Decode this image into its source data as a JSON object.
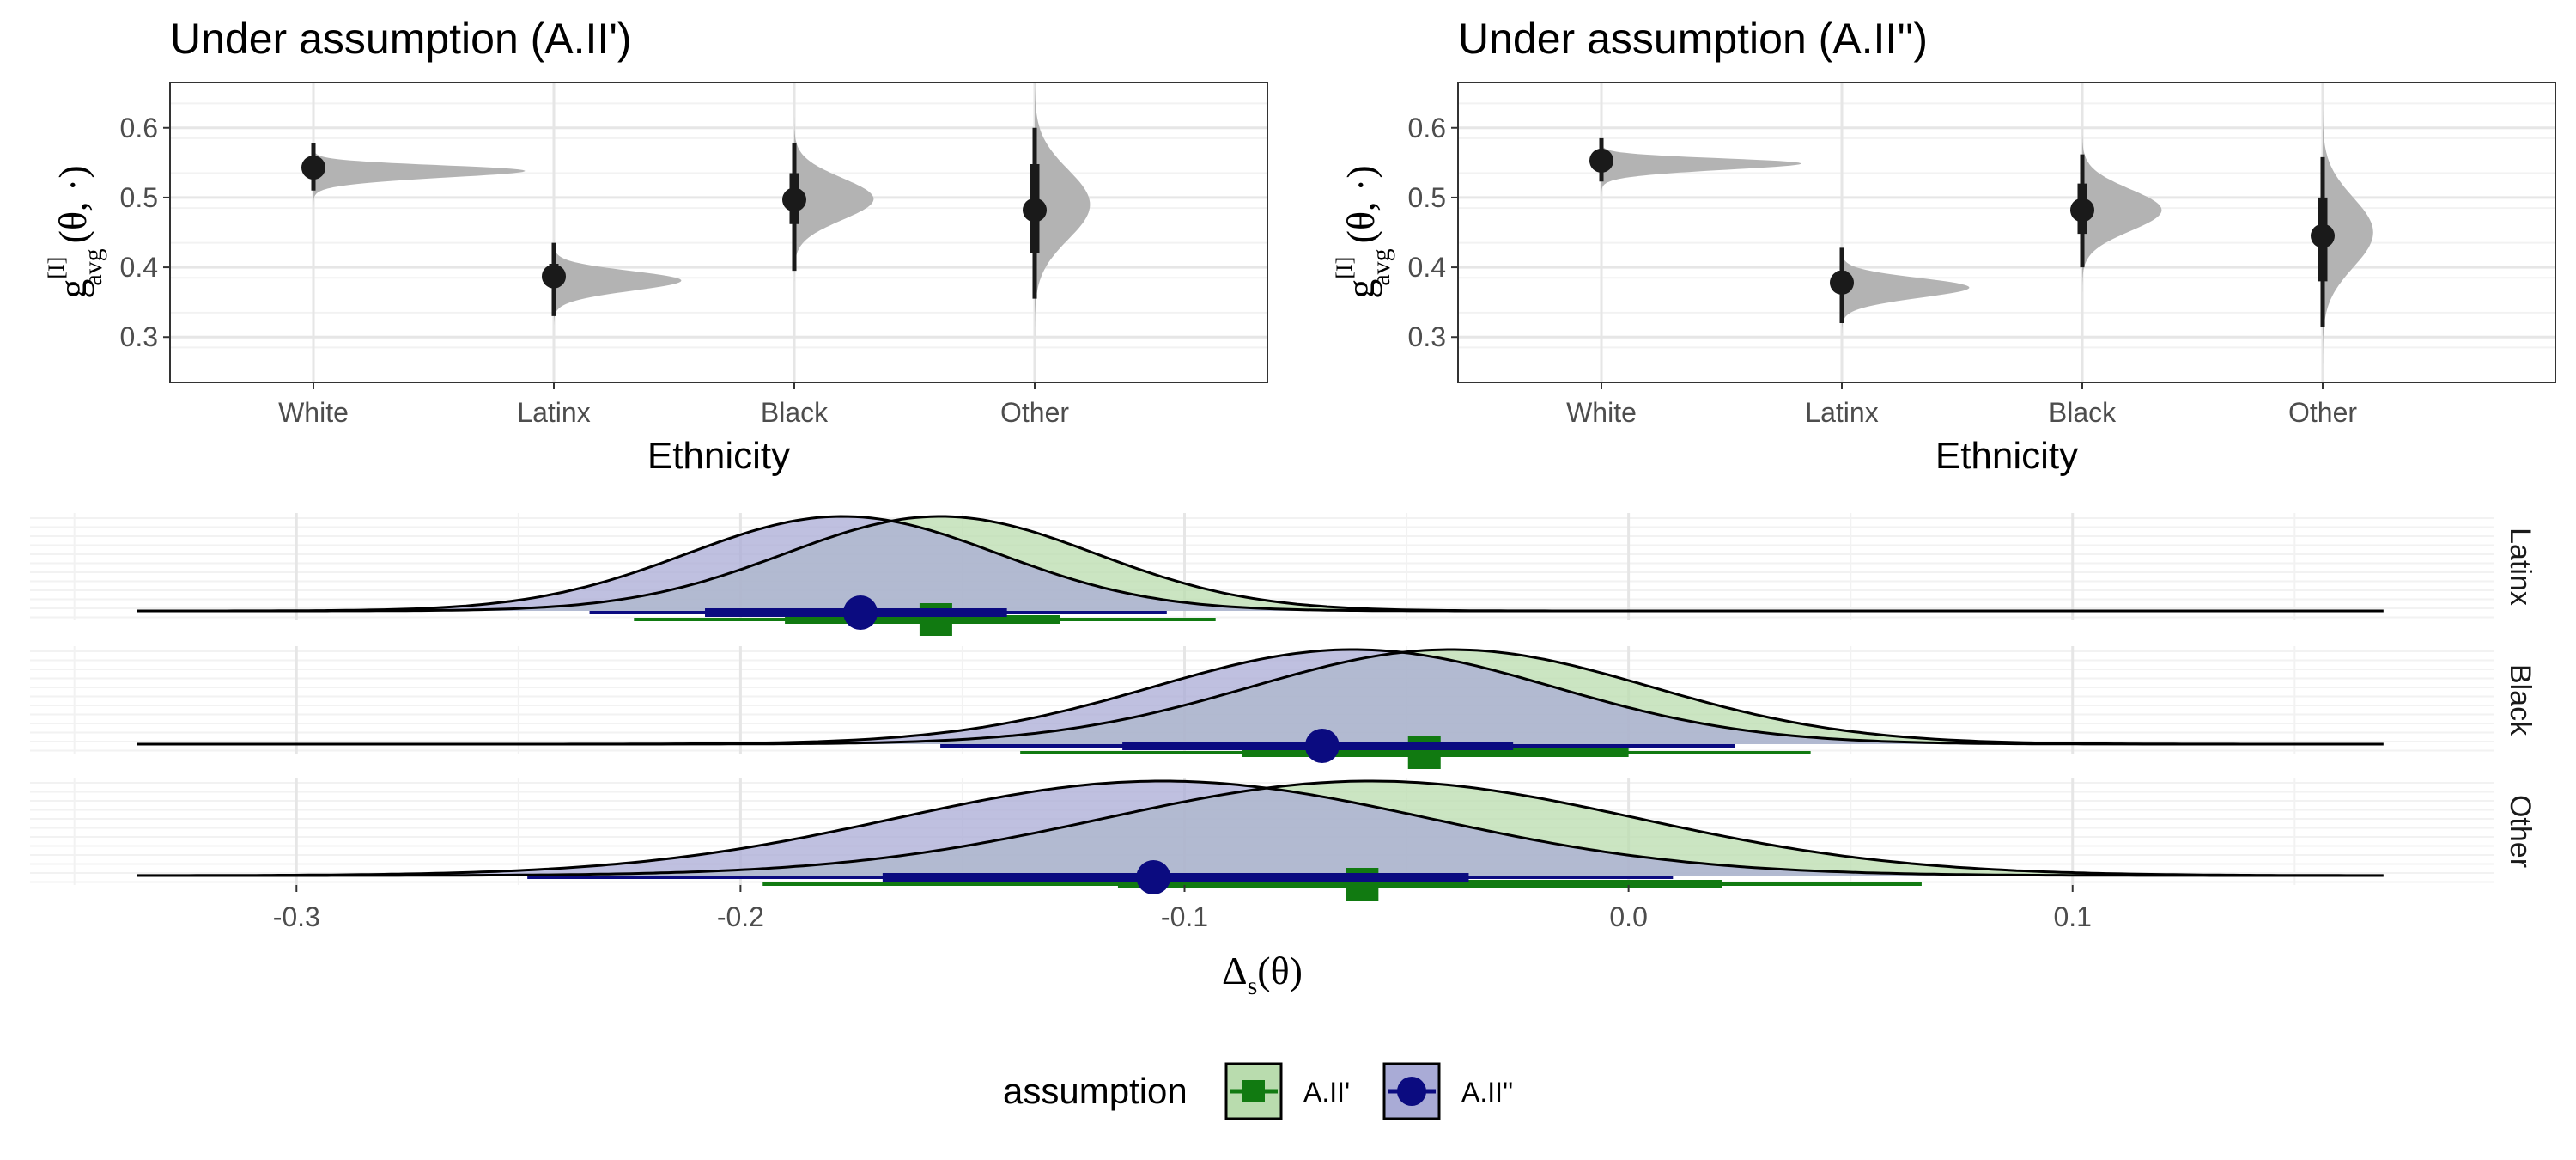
{
  "colors": {
    "grey_density": "#b3b3b3",
    "point": "#1a1a1a",
    "green": "#117a11",
    "green_fill": "#b9dcae",
    "blue": "#0b0b80",
    "blue_fill": "#a9abd6",
    "grid_major": "#e6e6e6",
    "grid_minor": "#f2f2f2",
    "strip_bg": "#ffffff"
  },
  "legend": {
    "title": "assumption",
    "items": [
      {
        "label": "A.II'",
        "shape": "square",
        "color": "#117a11",
        "fill": "#b9dcae"
      },
      {
        "label": "A.II''",
        "shape": "circle",
        "color": "#0b0b80",
        "fill": "#a9abd6"
      }
    ]
  },
  "chart_data": [
    {
      "type": "halfeye",
      "title": "Under assumption (A.II')",
      "xlabel": "Ethnicity",
      "ylabel_main": "g",
      "ylabel_sup": "[I]",
      "ylabel_sub": "avg",
      "ylabel_args": "(θ, ·)",
      "categories": [
        "White",
        "Latinx",
        "Black",
        "Other"
      ],
      "yticks": [
        0.3,
        0.4,
        0.5,
        0.6
      ],
      "ylim": [
        0.235,
        0.665
      ],
      "grid": true,
      "series": [
        {
          "category": "White",
          "median": 0.543,
          "interval66": [
            0.53,
            0.556
          ],
          "interval95": [
            0.51,
            0.578
          ],
          "density_range": [
            0.49,
            0.6
          ],
          "density_mode": 0.545,
          "density_spread": 0.013,
          "density_skew": -1.6,
          "density_width": 0.88
        },
        {
          "category": "Latinx",
          "median": 0.387,
          "interval66": [
            0.373,
            0.405
          ],
          "interval95": [
            0.33,
            0.435
          ],
          "density_range": [
            0.318,
            0.465
          ],
          "density_mode": 0.39,
          "density_spread": 0.018,
          "density_skew": -1.0,
          "density_width": 0.53
        },
        {
          "category": "Black",
          "median": 0.497,
          "interval66": [
            0.462,
            0.535
          ],
          "interval95": [
            0.395,
            0.578
          ],
          "density_range": [
            0.36,
            0.62
          ],
          "density_mode": 0.498,
          "density_spread": 0.03,
          "density_skew": 0.0,
          "density_width": 0.33
        },
        {
          "category": "Other",
          "median": 0.482,
          "interval66": [
            0.42,
            0.548
          ],
          "interval95": [
            0.355,
            0.6
          ],
          "density_range": [
            0.235,
            0.665
          ],
          "density_mode": 0.49,
          "density_spread": 0.05,
          "density_skew": 0.0,
          "density_width": 0.23
        }
      ]
    },
    {
      "type": "halfeye",
      "title": "Under assumption (A.II'')",
      "xlabel": "Ethnicity",
      "ylabel_main": "g",
      "ylabel_sup": "[I]",
      "ylabel_sub": "avg",
      "ylabel_args": "(θ, ·)",
      "categories": [
        "White",
        "Latinx",
        "Black",
        "Other"
      ],
      "yticks": [
        0.3,
        0.4,
        0.5,
        0.6
      ],
      "ylim": [
        0.235,
        0.665
      ],
      "grid": true,
      "series": [
        {
          "category": "White",
          "median": 0.553,
          "interval66": [
            0.54,
            0.566
          ],
          "interval95": [
            0.523,
            0.585
          ],
          "density_range": [
            0.505,
            0.605
          ],
          "density_mode": 0.555,
          "density_spread": 0.012,
          "density_skew": -1.6,
          "density_width": 0.83
        },
        {
          "category": "Latinx",
          "median": 0.378,
          "interval66": [
            0.365,
            0.395
          ],
          "interval95": [
            0.32,
            0.428
          ],
          "density_range": [
            0.305,
            0.455
          ],
          "density_mode": 0.38,
          "density_spread": 0.018,
          "density_skew": -1.0,
          "density_width": 0.53
        },
        {
          "category": "Black",
          "median": 0.482,
          "interval66": [
            0.448,
            0.52
          ],
          "interval95": [
            0.4,
            0.562
          ],
          "density_range": [
            0.36,
            0.6
          ],
          "density_mode": 0.482,
          "density_spread": 0.03,
          "density_skew": 0.0,
          "density_width": 0.33
        },
        {
          "category": "Other",
          "median": 0.445,
          "interval66": [
            0.38,
            0.5
          ],
          "interval95": [
            0.315,
            0.558
          ],
          "density_range": [
            0.235,
            0.665
          ],
          "density_mode": 0.45,
          "density_spread": 0.05,
          "density_skew": 0.0,
          "density_width": 0.21
        }
      ]
    },
    {
      "type": "density",
      "xlabel_main": "Δ",
      "xlabel_sub": "s",
      "xlabel_args": "(θ)",
      "xticks": [
        -0.3,
        -0.2,
        -0.1,
        0.0,
        0.1
      ],
      "xtick_labels": [
        "-0.3",
        "-0.2",
        "-0.1",
        "0.0",
        "0.1"
      ],
      "xlim": [
        -0.36,
        0.195
      ],
      "line_range": [
        -0.336,
        0.17
      ],
      "grid": true,
      "facets": [
        {
          "label": "Latinx",
          "series": [
            {
              "name": "A.II'",
              "mode": -0.155,
              "sd": 0.035,
              "skew": 0.0,
              "median": -0.156,
              "interval_thick": [
                -0.19,
                -0.128
              ],
              "interval_thin": [
                -0.224,
                -0.093
              ]
            },
            {
              "name": "A.II''",
              "mode": -0.177,
              "sd": 0.035,
              "skew": 0.0,
              "median": -0.173,
              "interval_thick": [
                -0.208,
                -0.14
              ],
              "interval_thin": [
                -0.234,
                -0.104
              ]
            }
          ]
        },
        {
          "label": "Black",
          "series": [
            {
              "name": "A.II'",
              "mode": -0.04,
              "sd": 0.045,
              "skew": 0.0,
              "median": -0.046,
              "interval_thick": [
                -0.087,
                0.0
              ],
              "interval_thin": [
                -0.137,
                0.041
              ]
            },
            {
              "name": "A.II''",
              "mode": -0.062,
              "sd": 0.045,
              "skew": 0.0,
              "median": -0.069,
              "interval_thick": [
                -0.114,
                -0.026
              ],
              "interval_thin": [
                -0.155,
                0.024
              ]
            }
          ]
        },
        {
          "label": "Other",
          "series": [
            {
              "name": "A.II'",
              "mode": -0.058,
              "sd": 0.06,
              "skew": 0.0,
              "median": -0.06,
              "interval_thick": [
                -0.115,
                0.021
              ],
              "interval_thin": [
                -0.195,
                0.066
              ]
            },
            {
              "name": "A.II''",
              "mode": -0.105,
              "sd": 0.06,
              "skew": 0.0,
              "median": -0.107,
              "interval_thick": [
                -0.168,
                -0.036
              ],
              "interval_thin": [
                -0.248,
                0.01
              ]
            }
          ]
        }
      ]
    }
  ]
}
